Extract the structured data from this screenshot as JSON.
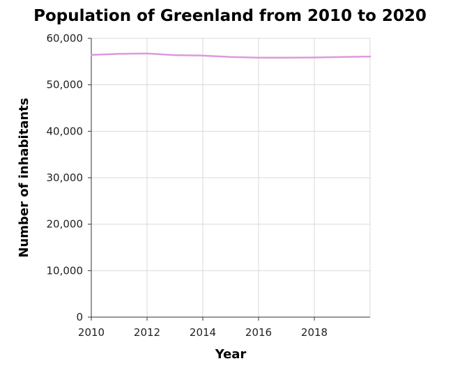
{
  "chart_data": {
    "type": "line",
    "title": "Population of Greenland from 2010 to 2020",
    "xlabel": "Year",
    "ylabel": "Number of inhabitants",
    "xlim": [
      2010,
      2020
    ],
    "ylim": [
      0,
      60000
    ],
    "x_ticks": [
      2010,
      2012,
      2014,
      2016,
      2018
    ],
    "x_tick_labels": [
      "2010",
      "2012",
      "2014",
      "2016",
      "2018"
    ],
    "y_ticks": [
      0,
      10000,
      20000,
      30000,
      40000,
      50000,
      60000
    ],
    "y_tick_labels": [
      "0",
      "10,000",
      "20,000",
      "30,000",
      "40,000",
      "50,000",
      "60,000"
    ],
    "grid": true,
    "series": [
      {
        "color": "#dd99dd",
        "x": [
          2010,
          2011,
          2012,
          2013,
          2014,
          2015,
          2016,
          2017,
          2018,
          2019,
          2020
        ],
        "values": [
          56450,
          56650,
          56750,
          56380,
          56280,
          56000,
          55850,
          55850,
          55880,
          55990,
          56080
        ]
      }
    ]
  }
}
